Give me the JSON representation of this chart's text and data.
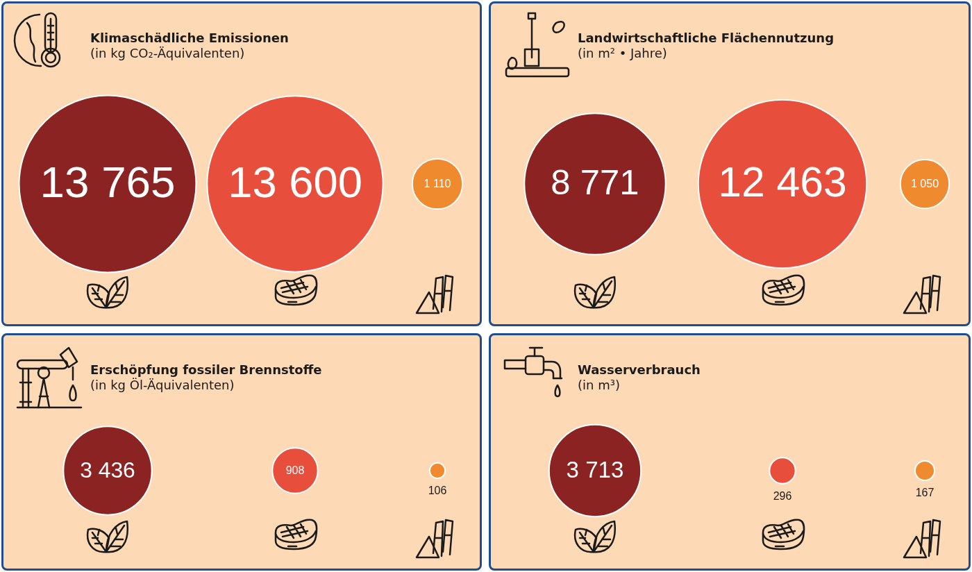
{
  "chart_data": [
    {
      "type": "other",
      "title": "Klimaschädliche Emissionen",
      "subtitle": "(in kg CO₂-Äquivalenten)",
      "categories": [
        null,
        null,
        null
      ],
      "values": [
        13765,
        13600,
        1110
      ],
      "value_labels": [
        "13 765",
        "13 600",
        "1 110"
      ],
      "colors": [
        "#8b2323",
        "#e84e3c",
        "#ef8a2e"
      ]
    },
    {
      "type": "other",
      "title": "Landwirtschaftliche Flächennutzung",
      "subtitle": "(in m² • Jahre)",
      "categories": [
        null,
        null,
        null
      ],
      "values": [
        8771,
        12463,
        1050
      ],
      "value_labels": [
        "8 771",
        "12 463",
        "1 050"
      ],
      "colors": [
        "#8b2323",
        "#e84e3c",
        "#ef8a2e"
      ]
    },
    {
      "type": "other",
      "title": "Erschöpfung fossiler Brennstoffe",
      "subtitle": "(in kg Öl-Äquivalenten)",
      "categories": [
        null,
        null,
        null
      ],
      "values": [
        3436,
        908,
        106
      ],
      "value_labels": [
        "3 436",
        "908",
        "106"
      ],
      "colors": [
        "#8b2323",
        "#e84e3c",
        "#ef8a2e"
      ]
    },
    {
      "type": "other",
      "title": "Wasserverbrauch",
      "subtitle": "(in m³)",
      "categories": [
        null,
        null,
        null
      ],
      "values": [
        3713,
        296,
        167
      ],
      "value_labels": [
        "3 713",
        "296",
        "167"
      ],
      "colors": [
        "#8b2323",
        "#e84e3c",
        "#ef8a2e"
      ]
    }
  ]
}
